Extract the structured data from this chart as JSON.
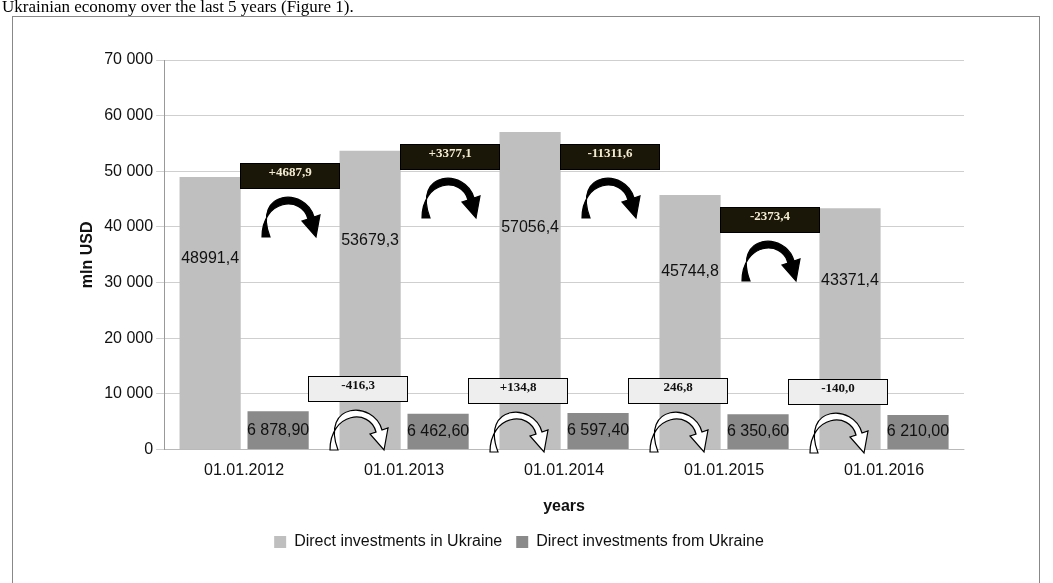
{
  "chart_data": {
    "type": "bar",
    "title": "Ukrainian economy over the last 5 years (Figure 1).",
    "xlabel": "years",
    "ylabel": "mln USD",
    "categories": [
      "01.01.2012",
      "01.01.2013",
      "01.01.2014",
      "01.01.2015",
      "01.01.2016"
    ],
    "series": [
      {
        "name": "Direct investments in Ukraine",
        "color": "#bfbfbf",
        "values": [
          48991.4,
          53679.3,
          57056.4,
          45744.8,
          43371.4
        ],
        "value_labels": [
          "48991,4",
          "53679,3",
          "57056,4",
          "45744,8",
          "43371,4"
        ]
      },
      {
        "name": "Direct investments from Ukraine",
        "color": "#8a8a8a",
        "values": [
          6878.9,
          6462.6,
          6597.4,
          6350.6,
          6210.0
        ],
        "value_labels": [
          "6 878,90",
          "6 462,60",
          "6 597,40",
          "6 350,60",
          "6 210,00"
        ]
      }
    ],
    "ylim": [
      0,
      70000
    ],
    "yticks": [
      {
        "value": 0,
        "label": "0"
      },
      {
        "value": 10000,
        "label": "10 000"
      },
      {
        "value": 20000,
        "label": "20 000"
      },
      {
        "value": 30000,
        "label": "30 000"
      },
      {
        "value": 40000,
        "label": "40 000"
      },
      {
        "value": 50000,
        "label": "50 000"
      },
      {
        "value": 60000,
        "label": "60 000"
      },
      {
        "value": 70000,
        "label": "70 000"
      }
    ],
    "grid": "y",
    "legend": "bottom",
    "annotations": [
      "+4687,9",
      "+3377,1",
      "-11311,6",
      "-2373,4",
      "-416,3",
      "+134,8",
      "246,8",
      "-140,0"
    ]
  }
}
